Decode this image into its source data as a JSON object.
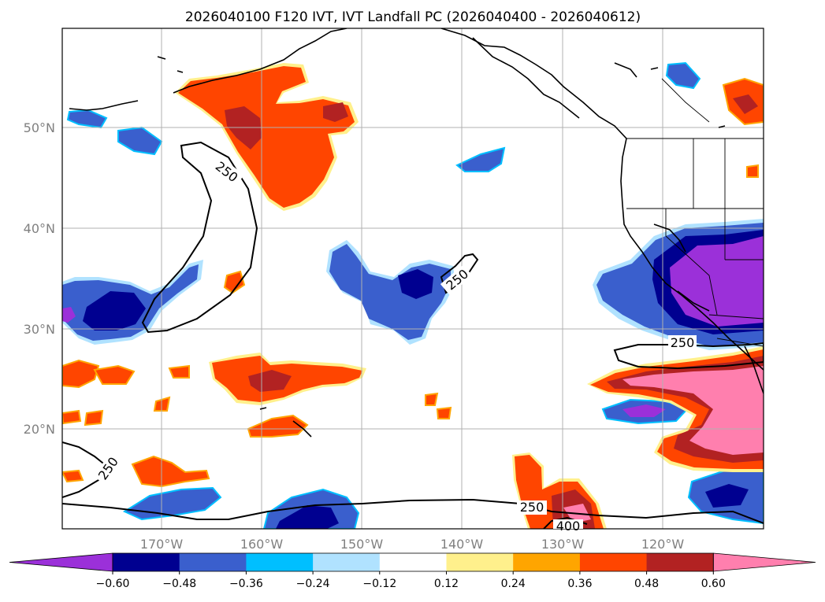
{
  "title": "2026040100 F120 IVT, IVT Landfall PC (2026040400 - 2026040612)",
  "lon_labels": [
    "170°W",
    "160°W",
    "150°W",
    "140°W",
    "130°W",
    "120°W"
  ],
  "lat_labels": [
    "50°N",
    "40°N",
    "30°N",
    "20°N"
  ],
  "colorbar": {
    "colors": [
      "#9b30d9",
      "#000090",
      "#3a5fcd",
      "#00bfff",
      "#b0e2ff",
      "#ffffff",
      "#fff08c",
      "#ffa500",
      "#ff4500",
      "#b22222",
      "#ff7fae"
    ],
    "ticks": [
      "−0.60",
      "−0.48",
      "−0.36",
      "−0.24",
      "−0.12",
      "0.12",
      "0.24",
      "0.36",
      "0.48",
      "0.60"
    ]
  },
  "contour_labels": [
    "250",
    "250",
    "250",
    "250",
    "250",
    "400"
  ],
  "legend_colors": {
    "neg_strong": "#9b30d9",
    "neg_dark": "#000090",
    "neg_mid": "#3a5fcd",
    "neg_light": "#00bfff",
    "neg_pale": "#b0e2ff",
    "pos_pale": "#fff08c",
    "pos_light": "#ffa500",
    "pos_mid": "#ff4500",
    "pos_dark": "#b22222",
    "pos_strong": "#ff7fae"
  }
}
